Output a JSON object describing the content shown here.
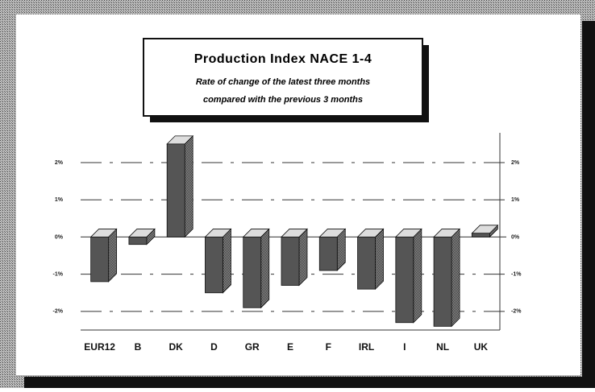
{
  "chart_data": {
    "type": "bar3d",
    "title": "Production Index NACE 1-4",
    "subtitle_lines": [
      "Rate of change of the latest three months",
      "compared with the previous 3 months"
    ],
    "categories": [
      "EUR12",
      "B",
      "DK",
      "D",
      "GR",
      "E",
      "F",
      "IRL",
      "I",
      "NL",
      "UK"
    ],
    "values": [
      -1.2,
      -0.2,
      2.5,
      -1.5,
      -1.9,
      -1.3,
      -0.9,
      -1.4,
      -2.3,
      -2.4,
      0.1
    ],
    "color": "#555555",
    "ylim": [
      -2.5,
      2.8
    ],
    "yticks": [
      {
        "value": -2,
        "label": "-2%"
      },
      {
        "value": -1,
        "label": "-1%"
      },
      {
        "value": 0,
        "label": "0%"
      },
      {
        "value": 1,
        "label": "1%"
      },
      {
        "value": 2,
        "label": "2%"
      }
    ],
    "grid": true
  }
}
